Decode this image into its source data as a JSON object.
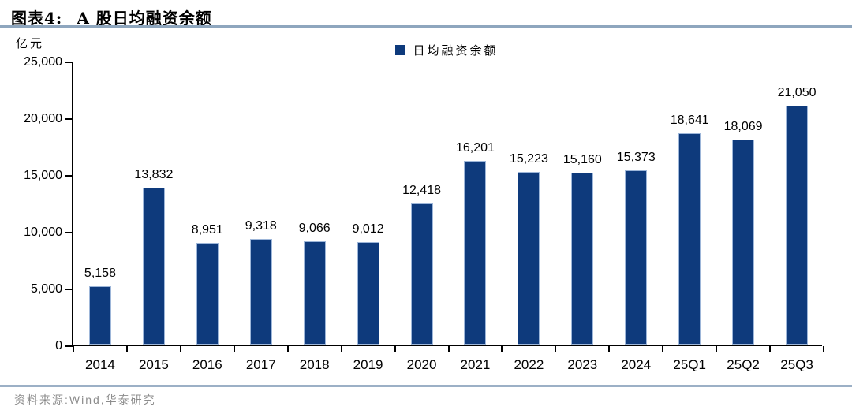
{
  "header": {
    "figure_label": "图表4:",
    "title": "A 股日均融资余额"
  },
  "chart_data": {
    "type": "bar",
    "title": "A 股日均融资余额",
    "unit": "亿元",
    "legend": "日均融资余额",
    "legend_position": "top-center",
    "grid": false,
    "categories": [
      "2014",
      "2015",
      "2016",
      "2017",
      "2018",
      "2019",
      "2020",
      "2021",
      "2022",
      "2023",
      "2024",
      "25Q1",
      "25Q2",
      "25Q3"
    ],
    "values": [
      5158,
      13832,
      8951,
      9318,
      9066,
      9012,
      12418,
      16201,
      15223,
      15160,
      15373,
      18641,
      18069,
      21050
    ],
    "value_labels": [
      "5,158",
      "13,832",
      "8,951",
      "9,318",
      "9,066",
      "9,012",
      "12,418",
      "16,201",
      "15,223",
      "15,160",
      "15,373",
      "18,641",
      "18,069",
      "21,050"
    ],
    "ylim": [
      0,
      25000
    ],
    "yticks": [
      0,
      5000,
      10000,
      15000,
      20000,
      25000
    ],
    "ytick_labels": [
      "0",
      "5,000",
      "10,000",
      "15,000",
      "20,000",
      "25,000"
    ],
    "bar_color": "#0e3a7c"
  },
  "footer": {
    "source": "资料来源:Wind,华泰研究"
  }
}
